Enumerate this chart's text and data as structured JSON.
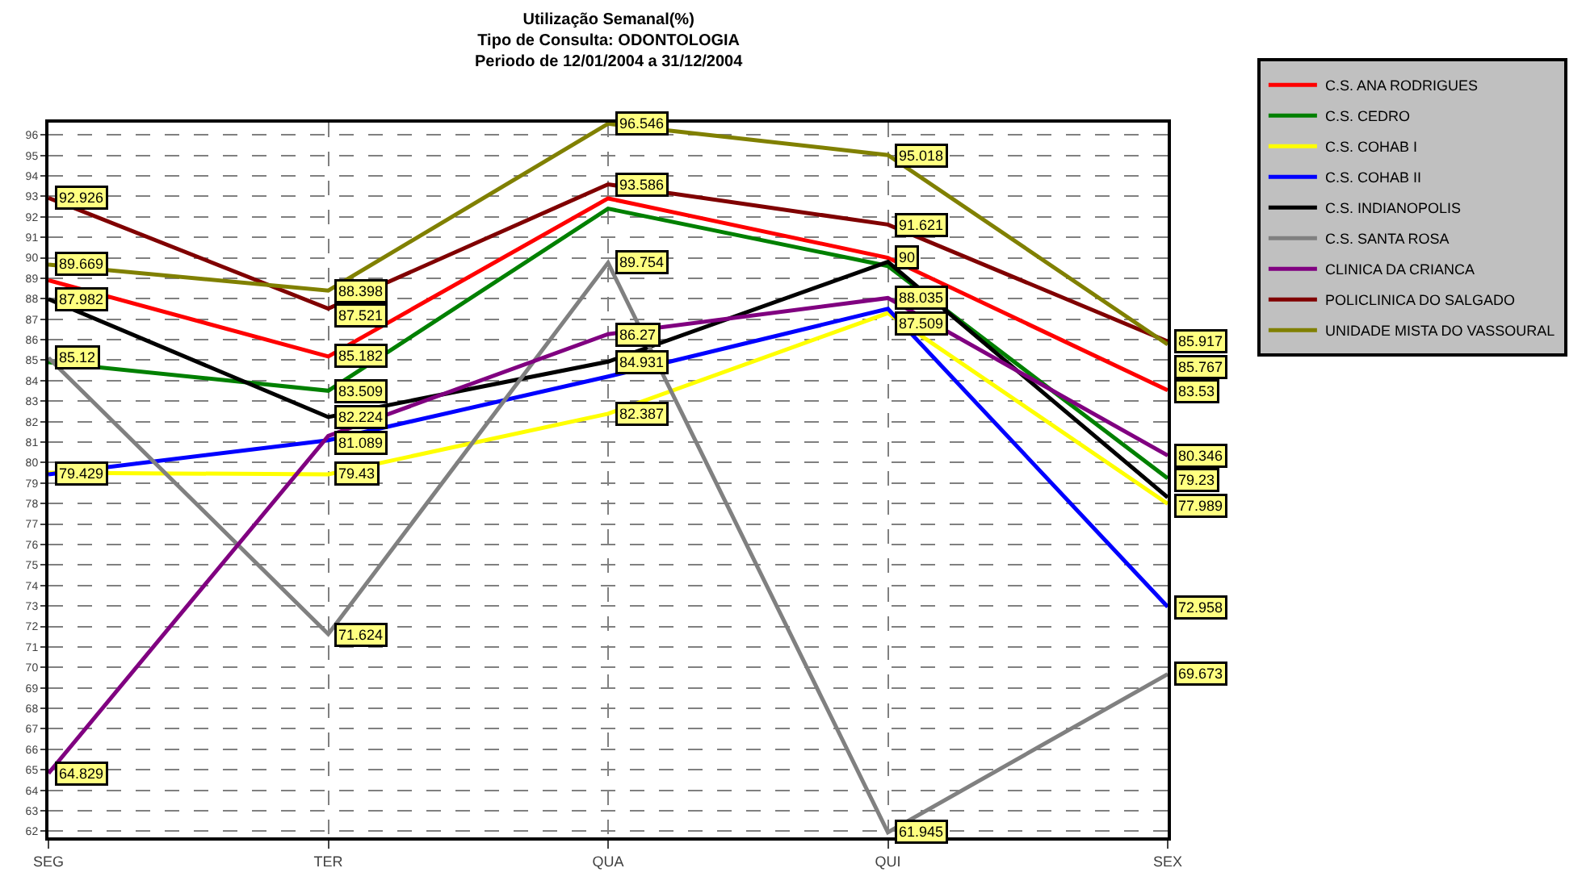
{
  "chart_data": {
    "type": "line",
    "title": "Utilização Semanal(%)\nTipo de Consulta: ODONTOLOGIA\nPeriodo de 12/01/2004 a 31/12/2004",
    "categories": [
      "SEG",
      "TER",
      "QUA",
      "QUI",
      "SEX"
    ],
    "series": [
      {
        "name": "C.S. ANA RODRIGUES",
        "color": "#ff0000",
        "values": [
          88.9,
          85.182,
          92.9,
          90,
          83.53
        ],
        "value_labels": [
          null,
          "85.182",
          null,
          "90",
          "83.53"
        ]
      },
      {
        "name": "C.S. CEDRO",
        "color": "#008000",
        "values": [
          84.9,
          83.509,
          92.4,
          89.6,
          79.23
        ],
        "value_labels": [
          null,
          "83.509",
          null,
          null,
          "79.23"
        ]
      },
      {
        "name": "C.S. COHAB I",
        "color": "#ffff00",
        "values": [
          79.5,
          79.43,
          82.387,
          87.3,
          77.989
        ],
        "value_labels": [
          null,
          "79.43",
          "82.387",
          null,
          "77.989"
        ]
      },
      {
        "name": "C.S. COHAB II",
        "color": "#0000ff",
        "values": [
          79.429,
          81.089,
          84.2,
          87.509,
          72.958
        ],
        "value_labels": [
          "79.429",
          "81.089",
          null,
          "87.509",
          "72.958"
        ]
      },
      {
        "name": "C.S. INDIANOPOLIS",
        "color": "#000000",
        "values": [
          87.982,
          82.224,
          84.931,
          89.8,
          78.3
        ],
        "value_labels": [
          "87.982",
          "82.224",
          "84.931",
          null,
          null
        ]
      },
      {
        "name": "C.S. SANTA ROSA",
        "color": "#808080",
        "values": [
          85.12,
          71.624,
          89.754,
          61.945,
          69.673
        ],
        "value_labels": [
          "85.12",
          "71.624",
          "89.754",
          "61.945",
          "69.673"
        ]
      },
      {
        "name": "CLINICA DA CRIANCA",
        "color": "#800080",
        "values": [
          64.829,
          81.3,
          86.27,
          88.035,
          80.346
        ],
        "value_labels": [
          "64.829",
          null,
          "86.27",
          "88.035",
          "80.346"
        ]
      },
      {
        "name": "POLICLINICA DO SALGADO",
        "color": "#800000",
        "values": [
          92.926,
          87.521,
          93.586,
          91.621,
          85.917
        ],
        "value_labels": [
          "92.926",
          "87.521",
          "93.586",
          "91.621",
          "85.917"
        ]
      },
      {
        "name": "UNIDADE MISTA DO VASSOURAL",
        "color": "#808000",
        "values": [
          89.669,
          88.398,
          96.546,
          95.018,
          85.767
        ],
        "value_labels": [
          "89.669",
          "88.398",
          "96.546",
          "95.018",
          "85.767"
        ]
      }
    ],
    "ylim": [
      61.7,
      96.6
    ],
    "yticks": [
      62,
      63,
      64,
      65,
      66,
      67,
      68,
      69,
      70,
      71,
      72,
      73,
      74,
      75,
      76,
      77,
      78,
      79,
      80,
      81,
      82,
      83,
      84,
      85,
      86,
      87,
      88,
      89,
      90,
      91,
      92,
      93,
      94,
      95,
      96
    ],
    "grid": true,
    "legend": "top right",
    "line_style": "solid"
  }
}
